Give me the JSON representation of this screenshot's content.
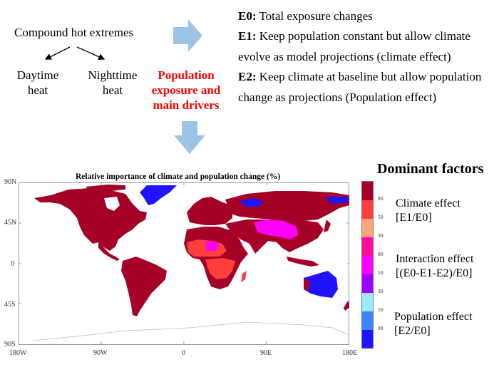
{
  "flowchart": {
    "root": "Compound hot extremes",
    "children": [
      {
        "line1": "Daytime",
        "line2": "heat"
      },
      {
        "line1": "Nighttime",
        "line2": "heat"
      }
    ],
    "target": {
      "line1": "Population",
      "line2": "exposure and",
      "line3": "main drivers"
    },
    "arrow_color": "#9dc3e6",
    "target_color": "#ff0000"
  },
  "definitions": [
    {
      "key": "E0:",
      "text": " Total exposure changes"
    },
    {
      "key": "E1:",
      "text": " Keep population constant but allow climate"
    },
    {
      "key": "",
      "text": "evolve as model projections (climate effect)"
    },
    {
      "key": "E2:",
      "text": " Keep climate at baseline but allow population"
    },
    {
      "key": "",
      "text": "change as projections (Population effect)"
    }
  ],
  "map": {
    "title": "Relative importance of climate and population change (%)",
    "lat_ticks": [
      "90N",
      "45N",
      "0",
      "45S",
      "90S"
    ],
    "lon_ticks": [
      "180W",
      "90W",
      "0",
      "90E",
      "180E"
    ],
    "regions": [
      {
        "name": "north-america",
        "category": "climate-80"
      },
      {
        "name": "greenland",
        "category": "population-80"
      },
      {
        "name": "south-america",
        "category": "climate-80"
      },
      {
        "name": "europe",
        "category": "climate-80"
      },
      {
        "name": "africa-north",
        "category": "climate-80"
      },
      {
        "name": "sahel-west-africa",
        "category": "climate-50"
      },
      {
        "name": "africa-central-south",
        "category": "climate-50"
      },
      {
        "name": "russia-siberia",
        "category": "climate-80"
      },
      {
        "name": "tibetan-plateau-china",
        "category": "interaction-80"
      },
      {
        "name": "south-asia",
        "category": "climate-80"
      },
      {
        "name": "southeast-asia",
        "category": "climate-80"
      },
      {
        "name": "australia",
        "category": "population-80"
      },
      {
        "name": "new-zealand",
        "category": "climate-80"
      },
      {
        "name": "antarctica",
        "category": "none"
      }
    ]
  },
  "legend": {
    "title": "Dominant factors",
    "colorbar": [
      {
        "color": "#a50026"
      },
      {
        "color": "#ff3e3e"
      },
      {
        "color": "#ffa57a"
      },
      {
        "color": "#ff0aa0"
      },
      {
        "color": "#ff00ff"
      },
      {
        "color": "#9d00ff"
      },
      {
        "color": "#9de9ff"
      },
      {
        "color": "#3d85ff"
      },
      {
        "color": "#1e14ff"
      }
    ],
    "ticks": [
      "80",
      "50",
      "30",
      "80",
      "50",
      "30",
      "50",
      "80"
    ],
    "groups": [
      {
        "line1": "Climate effect",
        "line2": "[E1/E0]"
      },
      {
        "line1": "Interaction effect",
        "line2": "[(E0-E1-E2)/E0]"
      },
      {
        "line1": "Population effect",
        "line2": "[E2/E0]"
      }
    ]
  }
}
